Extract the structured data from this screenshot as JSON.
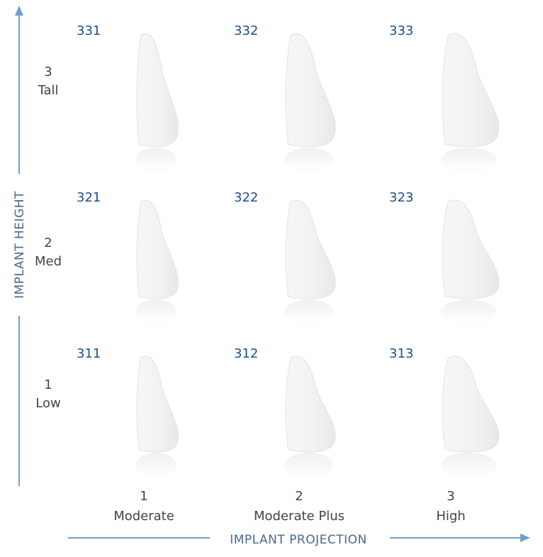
{
  "y_axis": {
    "label": "IMPLANT HEIGHT"
  },
  "x_axis": {
    "label": "IMPLANT PROJECTION"
  },
  "rows": [
    {
      "number": "3",
      "label": "Tall",
      "codes": [
        "331",
        "332",
        "333"
      ]
    },
    {
      "number": "2",
      "label": "Med",
      "codes": [
        "321",
        "322",
        "323"
      ]
    },
    {
      "number": "1",
      "label": "Low",
      "codes": [
        "311",
        "312",
        "313"
      ]
    }
  ],
  "columns": [
    {
      "number": "1",
      "label": "Moderate"
    },
    {
      "number": "2",
      "label": "Moderate Plus"
    },
    {
      "number": "3",
      "label": "High"
    }
  ]
}
